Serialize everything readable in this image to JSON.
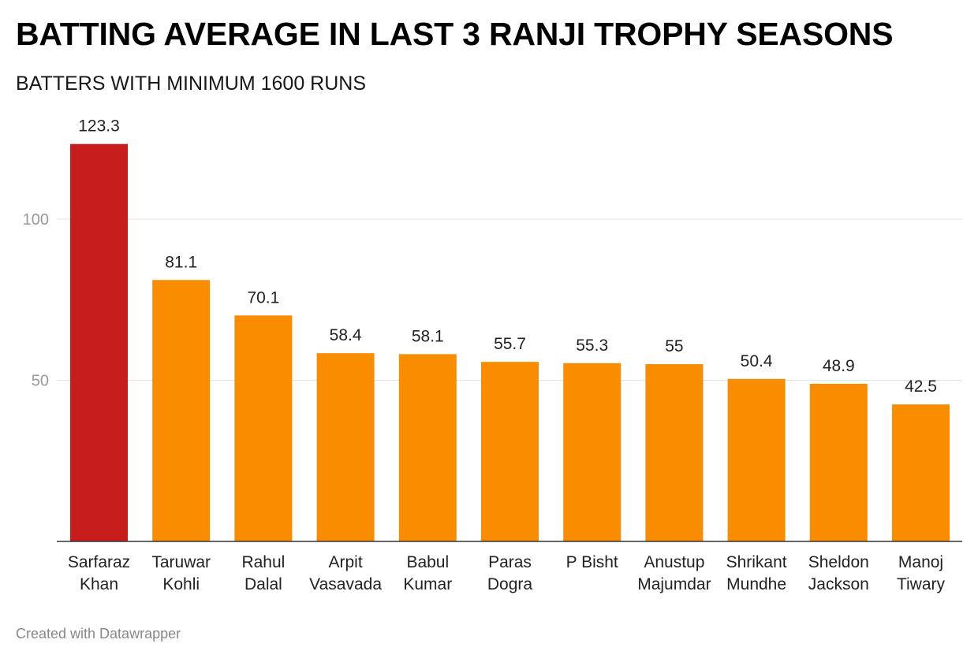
{
  "chart_data": {
    "type": "bar",
    "title": "BATTING AVERAGE IN LAST 3 RANJI TROPHY SEASONS",
    "subtitle": "BATTERS WITH MINIMUM 1600 RUNS",
    "footer": "Created with Datawrapper",
    "categories": [
      [
        "Sarfaraz",
        "Khan"
      ],
      [
        "Taruwar",
        "Kohli"
      ],
      [
        "Rahul",
        "Dalal"
      ],
      [
        "Arpit",
        "Vasavada"
      ],
      [
        "Babul",
        "Kumar"
      ],
      [
        "Paras",
        "Dogra"
      ],
      [
        "P Bisht"
      ],
      [
        "Anustup",
        "Majumdar"
      ],
      [
        "Shrikant",
        "Mundhe"
      ],
      [
        "Sheldon",
        "Jackson"
      ],
      [
        "Manoj",
        "Tiwary"
      ]
    ],
    "values": [
      123.3,
      81.1,
      70.1,
      58.4,
      58.1,
      55.7,
      55.3,
      55,
      50.4,
      48.9,
      42.5
    ],
    "value_labels": [
      "123.3",
      "81.1",
      "70.1",
      "58.4",
      "58.1",
      "55.7",
      "55.3",
      "55",
      "50.4",
      "48.9",
      "42.5"
    ],
    "highlight_index": 0,
    "yticks": [
      50,
      100
    ],
    "ylim": [
      0,
      130
    ],
    "grid": true,
    "xlabel": "",
    "ylabel": "",
    "colors": {
      "highlight": "#c71e1d",
      "default": "#fa8c00",
      "grid": "#e3e3e3",
      "axis": "#333333"
    }
  }
}
